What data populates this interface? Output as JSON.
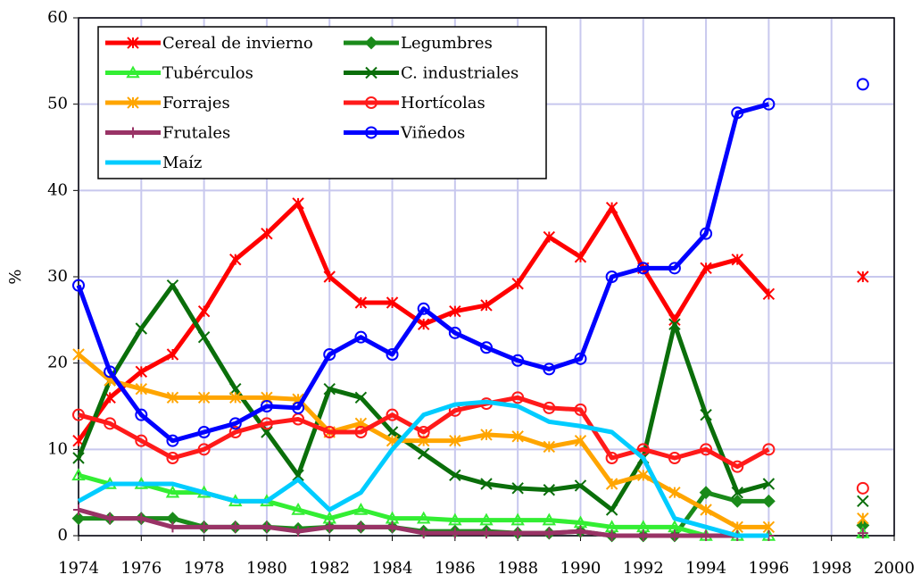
{
  "chart_data": {
    "type": "line",
    "y_label": "%",
    "x": [
      1974,
      1975,
      1976,
      1977,
      1978,
      1979,
      1980,
      1981,
      1982,
      1983,
      1984,
      1985,
      1986,
      1987,
      1988,
      1989,
      1990,
      1991,
      1992,
      1993,
      1994,
      1995,
      1996,
      1997,
      1998,
      1999
    ],
    "xlim": [
      1974,
      2000
    ],
    "xticks": [
      1974,
      1976,
      1978,
      1980,
      1982,
      1984,
      1986,
      1988,
      1990,
      1992,
      1994,
      1996,
      1998,
      2000
    ],
    "ylim": [
      0,
      60
    ],
    "yticks": [
      0,
      10,
      20,
      30,
      40,
      50,
      60
    ],
    "grid": true,
    "legend": "upper left",
    "series": [
      {
        "name": "Cereal de invierno",
        "color": "#ff0000",
        "marker": "star",
        "values": [
          11,
          16,
          19,
          21,
          26,
          32,
          35,
          38.5,
          30,
          27,
          27,
          24.5,
          26,
          26.7,
          29.2,
          34.6,
          32.3,
          38,
          31,
          25,
          31,
          32,
          28,
          null,
          null,
          30
        ]
      },
      {
        "name": "Legumbres",
        "color": "#1a8a1a",
        "marker": "diamond",
        "values": [
          2,
          2,
          2,
          2,
          1,
          1,
          1,
          0.8,
          1,
          1,
          1,
          0.5,
          0.5,
          0.5,
          0.3,
          0.3,
          0.5,
          0,
          0,
          0,
          5,
          4,
          4,
          null,
          null,
          1.2
        ]
      },
      {
        "name": "Tubérculos",
        "color": "#33ee33",
        "marker": "triangle",
        "values": [
          7,
          6,
          6,
          5,
          5,
          4,
          4,
          3,
          2,
          3,
          2,
          2,
          1.8,
          1.8,
          1.8,
          1.8,
          1.5,
          1,
          1,
          1,
          0,
          0,
          0,
          null,
          null,
          0.3
        ]
      },
      {
        "name": "C. industriales",
        "color": "#0a6e0a",
        "marker": "x",
        "values": [
          9,
          18,
          24,
          29,
          23,
          17,
          12,
          7,
          17,
          16,
          12,
          9.5,
          7,
          6,
          5.5,
          5.3,
          5.8,
          3,
          9,
          24.5,
          14,
          5,
          6,
          null,
          null,
          4
        ]
      },
      {
        "name": "Forrajes",
        "color": "#ffa500",
        "marker": "star",
        "values": [
          21,
          18,
          17,
          16,
          16,
          16,
          16,
          15.8,
          12,
          13,
          11,
          11,
          11,
          11.7,
          11.5,
          10.3,
          11,
          6,
          7,
          5,
          3,
          1,
          1,
          null,
          null,
          2
        ]
      },
      {
        "name": "Hortícolas",
        "color": "#ff1a1a",
        "marker": "circle",
        "values": [
          14,
          13,
          11,
          9,
          10,
          12,
          13,
          13.5,
          12,
          12,
          14,
          12,
          14.5,
          15.3,
          16,
          14.8,
          14.6,
          9,
          10,
          9,
          10,
          8,
          10,
          null,
          null,
          5.5
        ]
      },
      {
        "name": "Frutales",
        "color": "#993366",
        "marker": "plus",
        "values": [
          3,
          2,
          2,
          1,
          1,
          1,
          1,
          0.5,
          1,
          1,
          1,
          0.3,
          0.3,
          0.3,
          0.3,
          0.3,
          0.5,
          0,
          0,
          0,
          0,
          0,
          0,
          null,
          null,
          0.3
        ]
      },
      {
        "name": "Viñedos",
        "color": "#0000ff",
        "marker": "circle",
        "values": [
          29,
          19,
          14,
          11,
          12,
          13,
          15,
          14.8,
          21,
          23,
          21,
          26.3,
          23.5,
          21.8,
          20.3,
          19.3,
          20.5,
          30,
          31,
          31,
          35,
          49,
          50,
          null,
          null,
          52.3
        ]
      },
      {
        "name": "Maíz",
        "color": "#00ccff",
        "marker": "none",
        "values": [
          4,
          6,
          6,
          6,
          5,
          4,
          4,
          6.5,
          3,
          5,
          10,
          14,
          15.2,
          15.5,
          15,
          13.2,
          12.7,
          12,
          9,
          2,
          1,
          0,
          0,
          null,
          null,
          null
        ]
      }
    ]
  }
}
